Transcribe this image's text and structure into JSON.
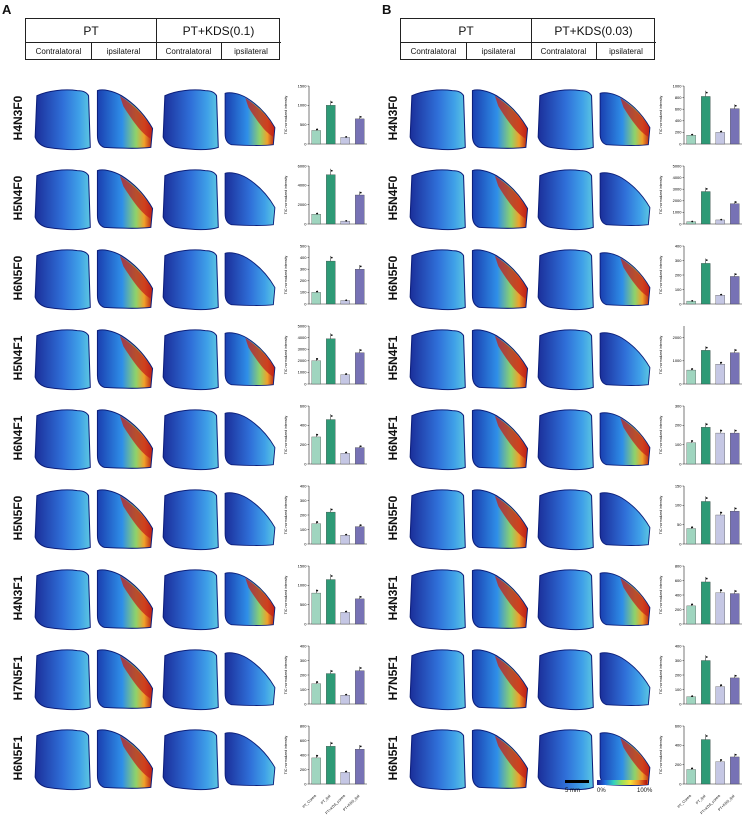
{
  "figure": {
    "panels": [
      {
        "label": "A",
        "header": {
          "group1": "PT",
          "group2": "PT+KDS(0.1)",
          "sub": [
            "Contralatoral",
            "ipsilateral",
            "Contralatoral",
            "ipsilateral"
          ]
        },
        "rows": [
          "H4N3F0",
          "H5N4F0",
          "H6N5F0",
          "H5N4F1",
          "H6N4F1",
          "H5N5F0",
          "H4N3F1",
          "H7N5F1",
          "H6N5F1"
        ]
      },
      {
        "label": "B",
        "header": {
          "group1": "PT",
          "group2": "PT+KDS(0.03)",
          "sub": [
            "Contralatoral",
            "ipsilateral",
            "Contralatoral",
            "ipsilateral"
          ]
        },
        "rows": [
          "H4N3F0",
          "H5N4F0",
          "H6N5F0",
          "H5N4F1",
          "H6N4F1",
          "H5N5F0",
          "H4N3F1",
          "H7N5F1",
          "H6N5F1"
        ]
      }
    ],
    "scale_bar": "5 mm",
    "colorbar": {
      "min": "0%",
      "max": "100%"
    }
  },
  "chart_data": [
    {
      "panel": "A",
      "row": "H4N3F0",
      "type": "bar",
      "ylabel": "TIC normalized intensity",
      "categories": [
        "PT_Contra",
        "PT_ipsi",
        "PT+KDS_contra",
        "PT+KDS_ipsi"
      ],
      "values": [
        350,
        1000,
        170,
        650
      ],
      "ylim": [
        0,
        1500
      ],
      "ticks": [
        0,
        500,
        1000,
        1500
      ]
    },
    {
      "panel": "A",
      "row": "H5N4F0",
      "type": "bar",
      "ylabel": "TIC normalized intensity",
      "categories": [
        "PT_Contra",
        "PT_ipsi",
        "PT+KDS_contra",
        "PT+KDS_ipsi"
      ],
      "values": [
        1000,
        5100,
        300,
        3000
      ],
      "ylim": [
        0,
        6000
      ],
      "ticks": [
        0,
        2000,
        4000,
        6000
      ]
    },
    {
      "panel": "A",
      "row": "H6N5F0",
      "type": "bar",
      "ylabel": "TIC normalized intensity",
      "categories": [
        "PT_Contra",
        "PT_ipsi",
        "PT+KDS_contra",
        "PT+KDS_ipsi"
      ],
      "values": [
        100,
        370,
        30,
        300
      ],
      "ylim": [
        0,
        500
      ],
      "ticks": [
        0,
        100,
        200,
        300,
        400,
        500
      ]
    },
    {
      "panel": "A",
      "row": "H5N4F1",
      "type": "bar",
      "ylabel": "TIC normalized intensity",
      "categories": [
        "PT_Contra",
        "PT_ipsi",
        "PT+KDS_contra",
        "PT+KDS_ipsi"
      ],
      "values": [
        2000,
        3900,
        800,
        2700
      ],
      "ylim": [
        0,
        5000
      ],
      "ticks": [
        0,
        1000,
        2000,
        3000,
        4000,
        5000
      ]
    },
    {
      "panel": "A",
      "row": "H6N4F1",
      "type": "bar",
      "ylabel": "TIC normalized intensity",
      "categories": [
        "PT_Contra",
        "PT_ipsi",
        "PT+KDS_contra",
        "PT+KDS_ipsi"
      ],
      "values": [
        280,
        460,
        110,
        170
      ],
      "ylim": [
        0,
        600
      ],
      "ticks": [
        0,
        200,
        400,
        600
      ]
    },
    {
      "panel": "A",
      "row": "H5N5F0",
      "type": "bar",
      "ylabel": "TIC normalized intensity",
      "categories": [
        "PT_Contra",
        "PT_ipsi",
        "PT+KDS_contra",
        "PT+KDS_ipsi"
      ],
      "values": [
        140,
        220,
        60,
        120
      ],
      "ylim": [
        0,
        400
      ],
      "ticks": [
        0,
        100,
        200,
        300,
        400
      ]
    },
    {
      "panel": "A",
      "row": "H4N3F1",
      "type": "bar",
      "ylabel": "TIC normalized intensity",
      "categories": [
        "PT_Contra",
        "PT_ipsi",
        "PT+KDS_contra",
        "PT+KDS_ipsi"
      ],
      "values": [
        800,
        1150,
        300,
        650
      ],
      "ylim": [
        0,
        1500
      ],
      "ticks": [
        0,
        500,
        1000,
        1500
      ]
    },
    {
      "panel": "A",
      "row": "H7N5F1",
      "type": "bar",
      "ylabel": "TIC normalized intensity",
      "categories": [
        "PT_Contra",
        "PT_ipsi",
        "PT+KDS_contra",
        "PT+KDS_ipsi"
      ],
      "values": [
        140,
        210,
        60,
        230
      ],
      "ylim": [
        0,
        400
      ],
      "ticks": [
        0,
        100,
        200,
        300,
        400
      ]
    },
    {
      "panel": "A",
      "row": "H6N5F1",
      "type": "bar",
      "ylabel": "TIC normalized intensity",
      "categories": [
        "PT_Contra",
        "PT_ipsi",
        "PT+KDS_contra",
        "PT+KDS_ipsi"
      ],
      "values": [
        360,
        520,
        160,
        480
      ],
      "ylim": [
        0,
        800
      ],
      "ticks": [
        0,
        200,
        400,
        600,
        800
      ]
    },
    {
      "panel": "B",
      "row": "H4N3F0",
      "type": "bar",
      "ylabel": "TIC normalized intensity",
      "categories": [
        "PT_Contra",
        "PT_ipsi",
        "PT+KDS_contra",
        "PT+KDS_ipsi"
      ],
      "values": [
        150,
        820,
        200,
        610
      ],
      "ylim": [
        0,
        1000
      ],
      "ticks": [
        0,
        200,
        400,
        600,
        800,
        1000
      ]
    },
    {
      "panel": "B",
      "row": "H5N4F0",
      "type": "bar",
      "ylabel": "TIC normalized intensity",
      "categories": [
        "PT_Contra",
        "PT_ipsi",
        "PT+KDS_contra",
        "PT+KDS_ipsi"
      ],
      "values": [
        200,
        2800,
        350,
        1750
      ],
      "ylim": [
        0,
        5000
      ],
      "ticks": [
        0,
        1000,
        2000,
        3000,
        4000,
        5000
      ]
    },
    {
      "panel": "B",
      "row": "H6N5F0",
      "type": "bar",
      "ylabel": "TIC normalized intensity",
      "categories": [
        "PT_Contra",
        "PT_ipsi",
        "PT+KDS_contra",
        "PT+KDS_ipsi"
      ],
      "values": [
        20,
        280,
        60,
        190
      ],
      "ylim": [
        0,
        400
      ],
      "ticks": [
        0,
        100,
        200,
        300,
        400
      ]
    },
    {
      "panel": "B",
      "row": "H5N4F1",
      "type": "bar",
      "ylabel": "TIC normalized intensity",
      "categories": [
        "PT_Contra",
        "PT_ipsi",
        "PT+KDS_contra",
        "PT+KDS_ipsi"
      ],
      "values": [
        600,
        1450,
        850,
        1350
      ],
      "ylim": [
        0,
        2500
      ],
      "ticks": [
        0,
        1000,
        2000
      ]
    },
    {
      "panel": "B",
      "row": "H6N4F1",
      "type": "bar",
      "ylabel": "TIC normalized intensity",
      "categories": [
        "PT_Contra",
        "PT_ipsi",
        "PT+KDS_contra",
        "PT+KDS_ipsi"
      ],
      "values": [
        110,
        190,
        160,
        160
      ],
      "ylim": [
        0,
        300
      ],
      "ticks": [
        0,
        100,
        200,
        300
      ]
    },
    {
      "panel": "B",
      "row": "H5N5F0",
      "type": "bar",
      "ylabel": "TIC normalized intensity",
      "categories": [
        "PT_Contra",
        "PT_ipsi",
        "PT+KDS_contra",
        "PT+KDS_ipsi"
      ],
      "values": [
        40,
        110,
        75,
        85
      ],
      "ylim": [
        0,
        150
      ],
      "ticks": [
        0,
        50,
        100,
        150
      ]
    },
    {
      "panel": "B",
      "row": "H4N3F1",
      "type": "bar",
      "ylabel": "TIC normalized intensity",
      "categories": [
        "PT_Contra",
        "PT_ipsi",
        "PT+KDS_contra",
        "PT+KDS_ipsi"
      ],
      "values": [
        250,
        580,
        430,
        420
      ],
      "ylim": [
        0,
        800
      ],
      "ticks": [
        0,
        200,
        400,
        600,
        800
      ]
    },
    {
      "panel": "B",
      "row": "H7N5F1",
      "type": "bar",
      "ylabel": "TIC normalized intensity",
      "categories": [
        "PT_Contra",
        "PT_ipsi",
        "PT+KDS_contra",
        "PT+KDS_ipsi"
      ],
      "values": [
        50,
        300,
        120,
        180
      ],
      "ylim": [
        0,
        400
      ],
      "ticks": [
        0,
        100,
        200,
        300,
        400
      ]
    },
    {
      "panel": "B",
      "row": "H6N5F1",
      "type": "bar",
      "ylabel": "TIC normalized intensity",
      "categories": [
        "PT_Contra",
        "PT_ipsi",
        "PT+KDS_contra",
        "PT+KDS_ipsi"
      ],
      "values": [
        150,
        460,
        230,
        280
      ],
      "ylim": [
        0,
        600
      ],
      "ticks": [
        0,
        200,
        400,
        600
      ]
    }
  ],
  "colors": {
    "bar_light": "#9fd5bf",
    "bar_dark": "#2e9a76",
    "bar_lavender": "#c5c7e4",
    "bar_purple": "#7772b5"
  }
}
